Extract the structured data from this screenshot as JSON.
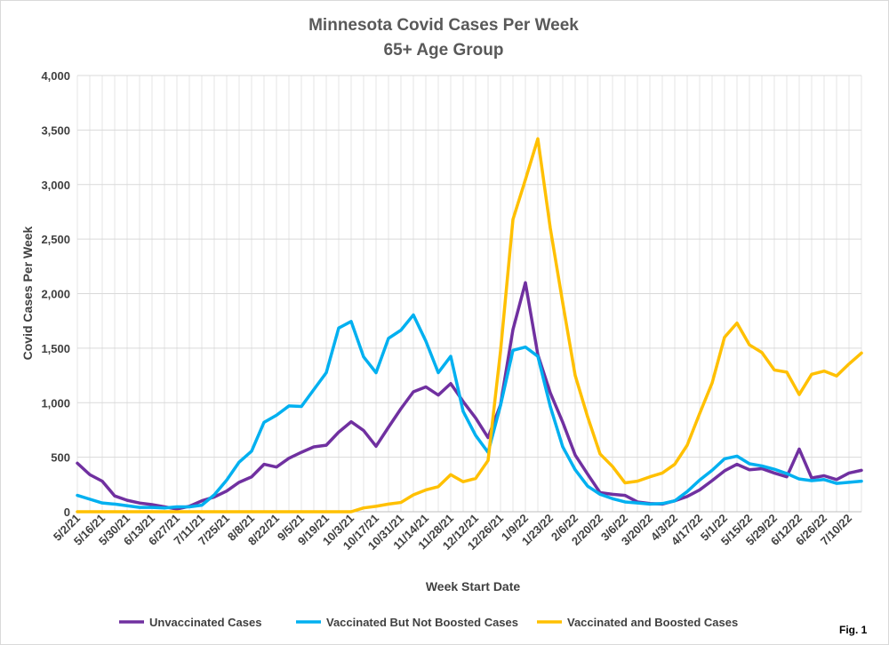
{
  "figure_label": "Fig. 1",
  "chart_data": {
    "type": "line",
    "title": "Minnesota Covid Cases Per Week",
    "subtitle": "65+ Age Group",
    "xlabel": "Week Start Date",
    "ylabel": "Covid Cases Per Week",
    "ylim": [
      0,
      4000
    ],
    "yticks": [
      0,
      500,
      1000,
      1500,
      2000,
      2500,
      3000,
      3500,
      4000
    ],
    "ytick_labels": [
      "0",
      "500",
      "1,000",
      "1,500",
      "2,000",
      "2,500",
      "3,000",
      "3,500",
      "4,000"
    ],
    "grid": "both",
    "legend": "bottom",
    "x": [
      "5/2/21",
      "5/9/21",
      "5/16/21",
      "5/23/21",
      "5/30/21",
      "6/6/21",
      "6/13/21",
      "6/20/21",
      "6/27/21",
      "7/4/21",
      "7/11/21",
      "7/18/21",
      "7/25/21",
      "8/1/21",
      "8/8/21",
      "8/15/21",
      "8/22/21",
      "8/29/21",
      "9/5/21",
      "9/12/21",
      "9/19/21",
      "9/26/21",
      "10/3/21",
      "10/10/21",
      "10/17/21",
      "10/24/21",
      "10/31/21",
      "11/7/21",
      "11/14/21",
      "11/21/21",
      "11/28/21",
      "12/5/21",
      "12/12/21",
      "12/19/21",
      "12/26/21",
      "1/2/22",
      "1/9/22",
      "1/16/22",
      "1/23/22",
      "1/30/22",
      "2/6/22",
      "2/13/22",
      "2/20/22",
      "2/27/22",
      "3/6/22",
      "3/13/22",
      "3/20/22",
      "3/27/22",
      "4/3/22",
      "4/10/22",
      "4/17/22",
      "4/24/22",
      "5/1/22",
      "5/8/22",
      "5/15/22",
      "5/22/22",
      "5/29/22",
      "6/5/22",
      "6/12/22",
      "6/19/22",
      "6/26/22",
      "7/3/22",
      "7/10/22",
      "7/17/22"
    ],
    "x_tick_labels": [
      "5/2/21",
      "5/16/21",
      "5/30/21",
      "6/13/21",
      "6/27/21",
      "7/11/21",
      "7/25/21",
      "8/8/21",
      "8/22/21",
      "9/5/21",
      "9/19/21",
      "10/3/21",
      "10/17/21",
      "10/31/21",
      "11/14/21",
      "11/28/21",
      "12/12/21",
      "12/26/21",
      "1/9/22",
      "1/23/22",
      "2/6/22",
      "2/20/22",
      "3/6/22",
      "3/20/22",
      "4/3/22",
      "4/17/22",
      "5/1/22",
      "5/15/22",
      "5/29/22",
      "6/12/22",
      "6/26/22",
      "7/10/22"
    ],
    "series": [
      {
        "name": "Unvaccinated Cases",
        "color": "#7030a0",
        "values": [
          445,
          340,
          280,
          145,
          105,
          80,
          65,
          45,
          25,
          50,
          100,
          135,
          190,
          270,
          320,
          435,
          410,
          490,
          545,
          595,
          610,
          730,
          825,
          745,
          600,
          775,
          945,
          1100,
          1145,
          1070,
          1175,
          1010,
          860,
          680,
          980,
          1670,
          2100,
          1440,
          1090,
          820,
          520,
          345,
          175,
          160,
          150,
          90,
          75,
          70,
          100,
          140,
          200,
          285,
          375,
          435,
          385,
          395,
          355,
          320,
          575,
          310,
          330,
          295,
          355,
          380
        ]
      },
      {
        "name": "Vaccinated But Not Boosted Cases",
        "color": "#00b0f0",
        "values": [
          150,
          115,
          80,
          70,
          55,
          40,
          40,
          35,
          45,
          45,
          60,
          155,
          290,
          455,
          555,
          820,
          885,
          970,
          965,
          1120,
          1275,
          1685,
          1745,
          1420,
          1275,
          1590,
          1665,
          1805,
          1565,
          1275,
          1425,
          920,
          700,
          545,
          975,
          1480,
          1510,
          1425,
          965,
          595,
          385,
          235,
          160,
          120,
          90,
          80,
          70,
          75,
          100,
          185,
          290,
          380,
          485,
          510,
          440,
          420,
          390,
          350,
          300,
          285,
          295,
          260,
          270,
          280
        ]
      },
      {
        "name": "Vaccinated and Boosted Cases",
        "color": "#ffc000",
        "values": [
          0,
          0,
          0,
          0,
          0,
          0,
          0,
          0,
          0,
          0,
          0,
          0,
          0,
          0,
          0,
          0,
          0,
          0,
          0,
          0,
          0,
          0,
          0,
          35,
          50,
          70,
          85,
          155,
          200,
          230,
          340,
          275,
          305,
          470,
          1470,
          2680,
          3045,
          3420,
          2600,
          1915,
          1250,
          870,
          530,
          415,
          265,
          280,
          320,
          355,
          435,
          610,
          900,
          1180,
          1600,
          1730,
          1530,
          1460,
          1300,
          1280,
          1075,
          1260,
          1290,
          1245,
          1355,
          1455
        ]
      }
    ]
  }
}
